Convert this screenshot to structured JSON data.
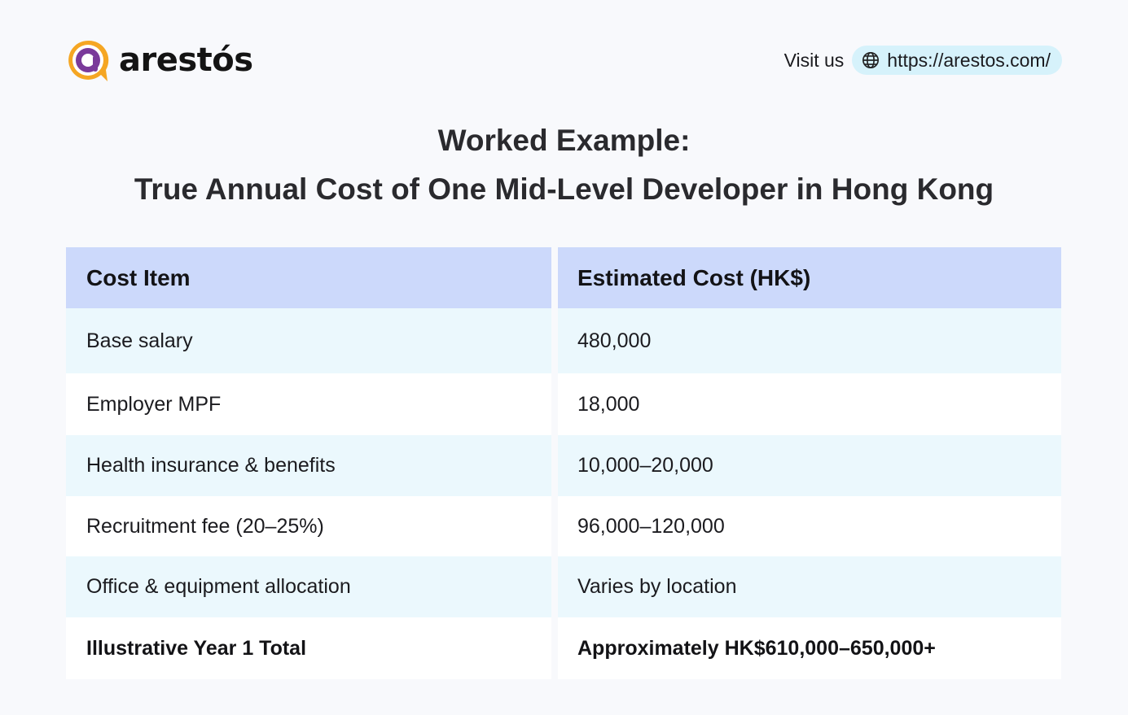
{
  "brand": {
    "name": "arestós",
    "colors": {
      "mark_orange": "#f5a623",
      "mark_purple": "#7a3a9a",
      "accent_pill": "#d6f2fb",
      "header_row": "#ccd9fb",
      "alt_row": "#ebf8fd"
    }
  },
  "visit": {
    "label": "Visit us",
    "icon": "globe-icon",
    "url": "https://arestos.com/"
  },
  "title": {
    "line1": "Worked Example:",
    "line2": "True Annual Cost of One Mid-Level Developer in Hong Kong"
  },
  "table": {
    "headers": [
      "Cost Item",
      "Estimated Cost (HK$)"
    ],
    "rows": [
      [
        "Base salary",
        "480,000"
      ],
      [
        "Employer MPF",
        "18,000"
      ],
      [
        "Health insurance & benefits",
        "10,000–20,000"
      ],
      [
        "Recruitment fee (20–25%)",
        "96,000–120,000"
      ],
      [
        "Office & equipment allocation",
        "Varies by location"
      ],
      [
        "Illustrative Year 1 Total",
        "Approximately HK$610,000–650,000+"
      ]
    ]
  }
}
